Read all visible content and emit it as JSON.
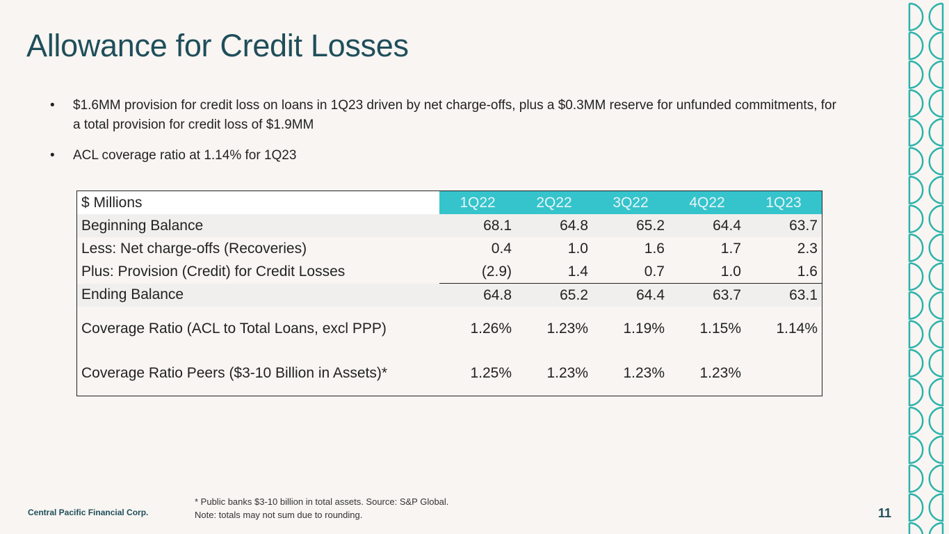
{
  "slide": {
    "title": "Allowance for Credit Losses",
    "bullets": [
      "$1.6MM provision for credit loss on loans in 1Q23 driven by net charge-offs, plus a $0.3MM reserve for unfunded commitments, for a total provision for credit loss of $1.9MM",
      "ACL coverage ratio at 1.14% for 1Q23"
    ],
    "bullet_glyph": "•"
  },
  "table": {
    "header_label": "$ Millions",
    "quarters": [
      "1Q22",
      "2Q22",
      "3Q22",
      "4Q22",
      "1Q23"
    ],
    "rows": [
      {
        "label": "Beginning Balance",
        "values": [
          "68.1",
          "64.8",
          "65.2",
          "64.4",
          "63.7"
        ]
      },
      {
        "label": "Less: Net charge-offs (Recoveries)",
        "values": [
          "0.4",
          "1.0",
          "1.6",
          "1.7",
          "2.3"
        ]
      },
      {
        "label": "Plus: Provision (Credit) for Credit Losses",
        "values": [
          "(2.9)",
          "1.4",
          "0.7",
          "1.0",
          "1.6"
        ]
      },
      {
        "label": "Ending Balance",
        "values": [
          "64.8",
          "65.2",
          "64.4",
          "63.7",
          "63.1"
        ]
      },
      {
        "label": "Coverage Ratio (ACL to Total Loans, excl PPP)",
        "values": [
          "1.26%",
          "1.23%",
          "1.19%",
          "1.15%",
          "1.14%"
        ]
      },
      {
        "label": "Coverage Ratio Peers ($3-10 Billion in Assets)*",
        "values": [
          "1.25%",
          "1.23%",
          "1.23%",
          "1.23%",
          ""
        ]
      }
    ]
  },
  "footer": {
    "company": "Central Pacific Financial Corp.",
    "footnote_1": "* Public banks $3-10 billion in total assets. Source: S&P Global.",
    "footnote_2": "Note: totals may not sum due to rounding.",
    "page_number": "11"
  },
  "colors": {
    "background": "#f8f5f2",
    "title": "#1f4e5a",
    "header_fill": "#35c4cb",
    "decor_stroke": "#2bb3ab"
  }
}
